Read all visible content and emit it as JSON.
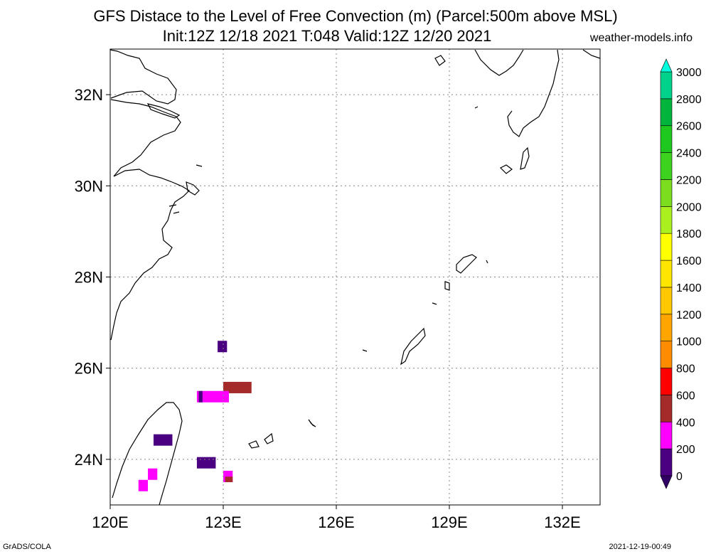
{
  "title_line1": "GFS Distace to the Level of Free Convection (m) (Parcel:500m above MSL)",
  "title_line2": "Init:12Z 12/18 2021 T:048 Valid:12Z 12/20 2021",
  "site": "weather-models.info",
  "footer_left": "GrADS/COLA",
  "footer_right": "2021-12-19-00:49",
  "map": {
    "lon_range": [
      120,
      133
    ],
    "lat_range": [
      23,
      33
    ],
    "x_ticks": [
      {
        "value": 120,
        "label": "120E"
      },
      {
        "value": 123,
        "label": "123E"
      },
      {
        "value": 126,
        "label": "126E"
      },
      {
        "value": 129,
        "label": "129E"
      },
      {
        "value": 132,
        "label": "132E"
      }
    ],
    "y_ticks": [
      {
        "value": 24,
        "label": "24N"
      },
      {
        "value": 26,
        "label": "26N"
      },
      {
        "value": 28,
        "label": "28N"
      },
      {
        "value": 30,
        "label": "30N"
      },
      {
        "value": 32,
        "label": "32N"
      }
    ],
    "grid": true
  },
  "colorbar": {
    "levels": [
      {
        "value": 0,
        "label": "0",
        "color": "#4b0082"
      },
      {
        "value": 200,
        "label": "200",
        "color": "#ff00ff"
      },
      {
        "value": 400,
        "label": "400",
        "color": "#a52a2a"
      },
      {
        "value": 600,
        "label": "600",
        "color": "#ff0000"
      },
      {
        "value": 800,
        "label": "800",
        "color": "#ff8c00"
      },
      {
        "value": 1000,
        "label": "1000",
        "color": "#ffa500"
      },
      {
        "value": 1200,
        "label": "1200",
        "color": "#ffc800"
      },
      {
        "value": 1400,
        "label": "1400",
        "color": "#ffe600"
      },
      {
        "value": 1600,
        "label": "1600",
        "color": "#ffff00"
      },
      {
        "value": 1800,
        "label": "1800",
        "color": "#aaf01e"
      },
      {
        "value": 2000,
        "label": "2000",
        "color": "#7cdc1e"
      },
      {
        "value": 2200,
        "label": "2200",
        "color": "#3cd21e"
      },
      {
        "value": 2400,
        "label": "2400",
        "color": "#1ec81e"
      },
      {
        "value": 2600,
        "label": "2600",
        "color": "#00b43c"
      },
      {
        "value": 2800,
        "label": "2800",
        "color": "#00d28c"
      },
      {
        "value": 3000,
        "label": "3000",
        "color": "#00e6be"
      }
    ],
    "top_arrow_color": "#00ffdc",
    "bottom_arrow_color": "#320064"
  },
  "cells": [
    {
      "lon": 122.85,
      "lat": 26.35,
      "w": 0.25,
      "h": 0.25,
      "color": "#4b0082"
    },
    {
      "lon": 123.0,
      "lat": 25.45,
      "w": 0.75,
      "h": 0.25,
      "color": "#a52a2a"
    },
    {
      "lon": 122.3,
      "lat": 25.25,
      "w": 0.85,
      "h": 0.25,
      "color": "#ff00ff"
    },
    {
      "lon": 122.35,
      "lat": 25.25,
      "w": 0.1,
      "h": 0.25,
      "color": "#4b0082"
    },
    {
      "lon": 121.15,
      "lat": 24.3,
      "w": 0.5,
      "h": 0.25,
      "color": "#4b0082"
    },
    {
      "lon": 122.3,
      "lat": 23.8,
      "w": 0.5,
      "h": 0.25,
      "color": "#4b0082"
    },
    {
      "lon": 121.0,
      "lat": 23.55,
      "w": 0.25,
      "h": 0.25,
      "color": "#ff00ff"
    },
    {
      "lon": 120.75,
      "lat": 23.3,
      "w": 0.25,
      "h": 0.25,
      "color": "#ff00ff"
    },
    {
      "lon": 123.0,
      "lat": 23.5,
      "w": 0.25,
      "h": 0.25,
      "color": "#ff00ff"
    },
    {
      "lon": 123.05,
      "lat": 23.5,
      "w": 0.2,
      "h": 0.12,
      "color": "#a52a2a"
    }
  ]
}
